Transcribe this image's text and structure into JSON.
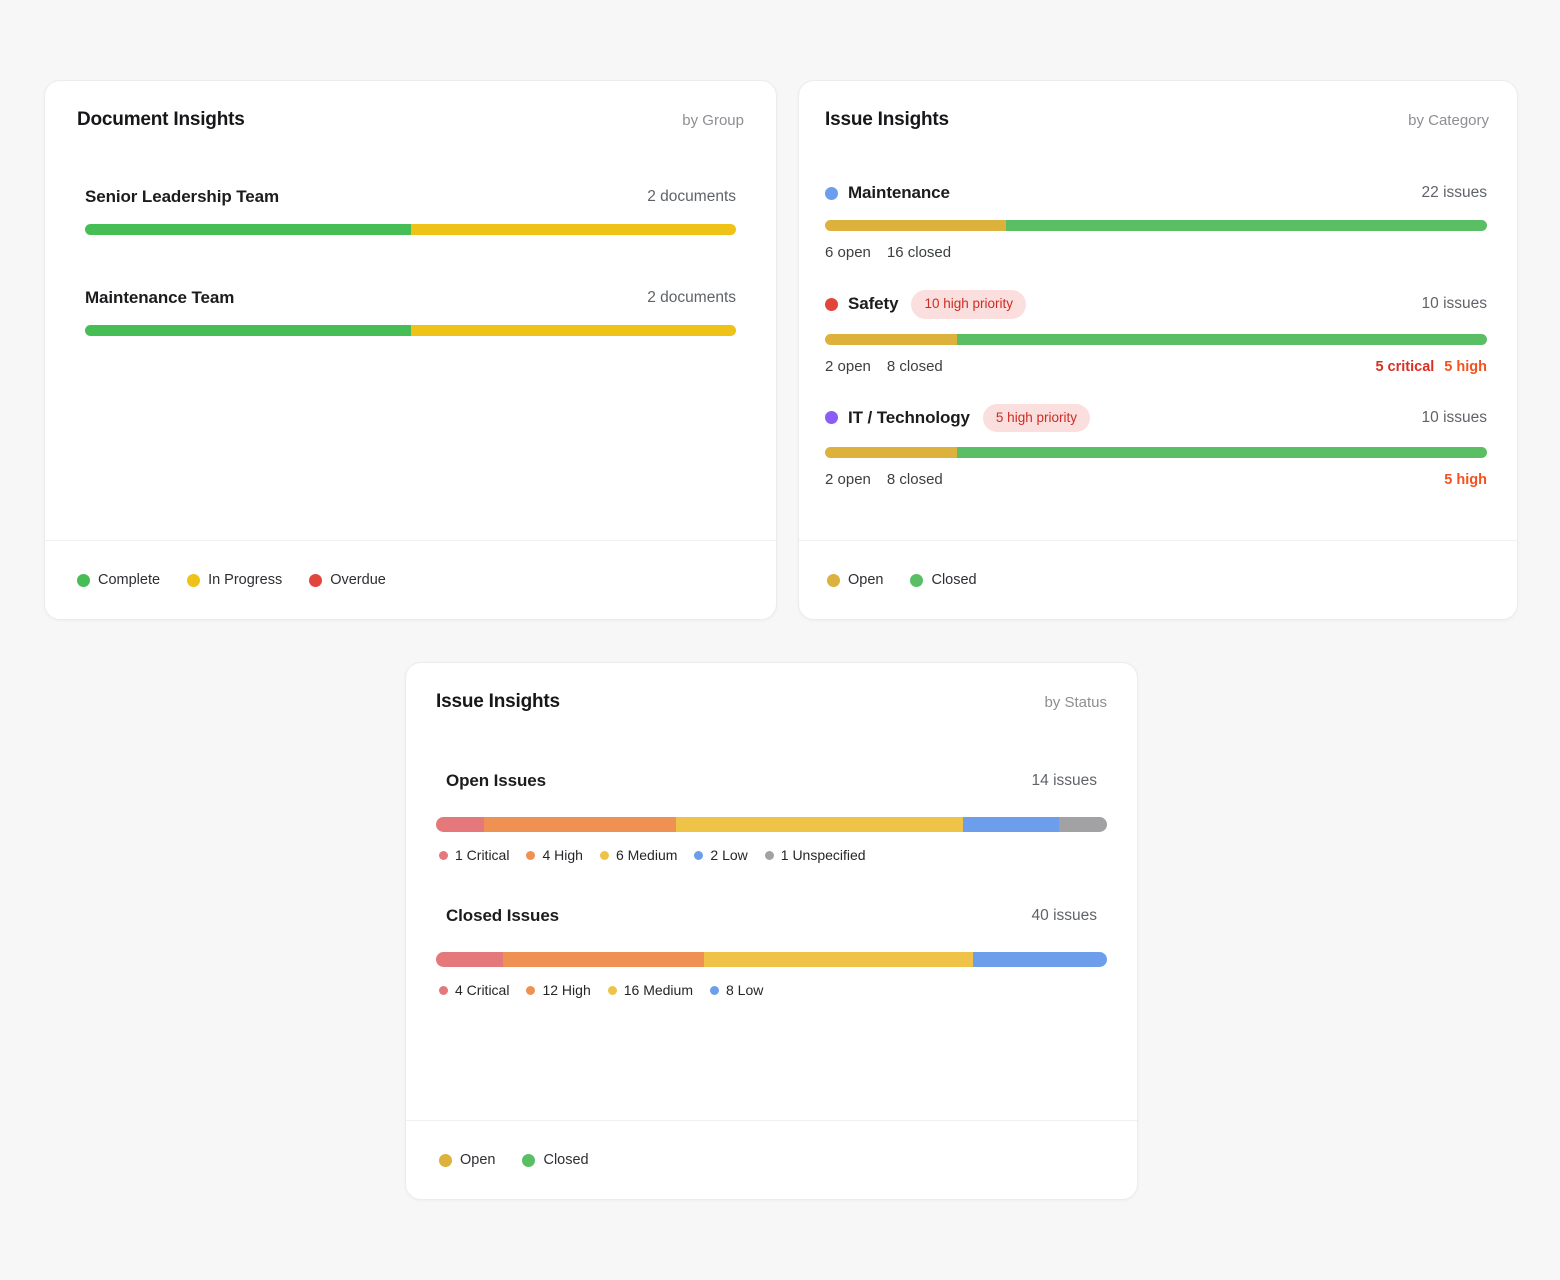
{
  "colors": {
    "page_bg": "#F7F7F8",
    "card_bg": "#FFFFFF",
    "complete_green": "#46BE55",
    "in_progress_yellow": "#EFC217",
    "overdue_red": "#E2453C",
    "open_gold": "#DCB13C",
    "closed_green": "#5ABE64",
    "critical_text_red": "#D93025",
    "high_text_orange": "#F4511E",
    "badge_bg": "#FADFDE",
    "badge_text": "#CE2C23",
    "seg_critical": "#E4787A",
    "seg_high": "#EF9152",
    "seg_medium": "#EFC348",
    "seg_low": "#6D9EEB",
    "seg_unspecified": "#A2A2A5"
  },
  "cards": {
    "documents": {
      "title": "Document Insights",
      "subtitle": "by Group",
      "rows": [
        {
          "label": "Senior Leadership Team",
          "count": "2 documents",
          "segments": [
            {
              "name": "Complete",
              "color": "#46BE55",
              "pct": 50
            },
            {
              "name": "In Progress",
              "color": "#EFC217",
              "pct": 50
            }
          ]
        },
        {
          "label": "Maintenance Team",
          "count": "2 documents",
          "segments": [
            {
              "name": "Complete",
              "color": "#46BE55",
              "pct": 50
            },
            {
              "name": "In Progress",
              "color": "#EFC217",
              "pct": 50
            }
          ]
        }
      ],
      "legend": [
        {
          "label": "Complete",
          "color": "#46BE55"
        },
        {
          "label": "In Progress",
          "color": "#EFC217"
        },
        {
          "label": "Overdue",
          "color": "#E2453C"
        }
      ]
    },
    "category": {
      "title": "Issue Insights",
      "subtitle": "by Category",
      "rows": [
        {
          "dot_color": "#6D9EEB",
          "label": "Maintenance",
          "count": "22 issues",
          "open_label": "6 open",
          "closed_label": "16 closed",
          "segments": [
            {
              "name": "Open",
              "color": "#DCB13C",
              "pct": 27.3
            },
            {
              "name": "Closed",
              "color": "#5ABE64",
              "pct": 72.7
            }
          ]
        },
        {
          "dot_color": "#E2453C",
          "label": "Safety",
          "badge": "10 high priority",
          "count": "10 issues",
          "open_label": "2 open",
          "closed_label": "8 closed",
          "critical_label": "5 critical",
          "high_label": "5 high",
          "segments": [
            {
              "name": "Open",
              "color": "#DCB13C",
              "pct": 20
            },
            {
              "name": "Closed",
              "color": "#5ABE64",
              "pct": 80
            }
          ]
        },
        {
          "dot_color": "#8B5CF6",
          "label": "IT / Technology",
          "badge": "5 high priority",
          "count": "10 issues",
          "open_label": "2 open",
          "closed_label": "8 closed",
          "high_label": "5 high",
          "segments": [
            {
              "name": "Open",
              "color": "#DCB13C",
              "pct": 20
            },
            {
              "name": "Closed",
              "color": "#5ABE64",
              "pct": 80
            }
          ]
        }
      ],
      "legend": [
        {
          "label": "Open",
          "color": "#DCB13C"
        },
        {
          "label": "Closed",
          "color": "#5ABE64"
        }
      ]
    },
    "status": {
      "title": "Issue Insights",
      "subtitle": "by Status",
      "rows": [
        {
          "label": "Open Issues",
          "count": "14 issues",
          "segments": [
            {
              "label": "1 Critical",
              "color": "#E4787A",
              "pct": 7.14
            },
            {
              "label": "4 High",
              "color": "#EF9152",
              "pct": 28.57
            },
            {
              "label": "6 Medium",
              "color": "#EFC348",
              "pct": 42.86
            },
            {
              "label": "2 Low",
              "color": "#6D9EEB",
              "pct": 14.29
            },
            {
              "label": "1 Unspecified",
              "color": "#A2A2A5",
              "pct": 7.14
            }
          ]
        },
        {
          "label": "Closed Issues",
          "count": "40 issues",
          "segments": [
            {
              "label": "4 Critical",
              "color": "#E4787A",
              "pct": 10
            },
            {
              "label": "12 High",
              "color": "#EF9152",
              "pct": 30
            },
            {
              "label": "16 Medium",
              "color": "#EFC348",
              "pct": 40
            },
            {
              "label": "8 Low",
              "color": "#6D9EEB",
              "pct": 20
            }
          ]
        }
      ],
      "legend": [
        {
          "label": "Open",
          "color": "#DCB13C"
        },
        {
          "label": "Closed",
          "color": "#5ABE64"
        }
      ]
    }
  },
  "chart_data": [
    {
      "type": "bar",
      "title": "Document Insights",
      "subtitle": "by Group",
      "layout": "horizontal stacked progress bars, legend at bottom",
      "categories": [
        "Senior Leadership Team",
        "Maintenance Team"
      ],
      "series": [
        {
          "name": "Complete",
          "values": [
            1,
            1
          ]
        },
        {
          "name": "In Progress",
          "values": [
            1,
            1
          ]
        },
        {
          "name": "Overdue",
          "values": [
            0,
            0
          ]
        }
      ],
      "totals": [
        2,
        2
      ],
      "unit": "documents"
    },
    {
      "type": "bar",
      "title": "Issue Insights",
      "subtitle": "by Category",
      "layout": "horizontal stacked progress bars, legend at bottom",
      "categories": [
        "Maintenance",
        "Safety",
        "IT / Technology"
      ],
      "series": [
        {
          "name": "Open",
          "values": [
            6,
            2,
            2
          ]
        },
        {
          "name": "Closed",
          "values": [
            16,
            8,
            8
          ]
        }
      ],
      "totals": [
        22,
        10,
        10
      ],
      "unit": "issues",
      "annotations": {
        "Safety": {
          "badge": "10 high priority",
          "critical": 5,
          "high": 5
        },
        "IT / Technology": {
          "badge": "5 high priority",
          "high": 5
        }
      }
    },
    {
      "type": "bar",
      "title": "Issue Insights",
      "subtitle": "by Status",
      "layout": "horizontal stacked severity bars with inline legends, Open/Closed legend at bottom",
      "categories": [
        "Open Issues",
        "Closed Issues"
      ],
      "series": [
        {
          "name": "Critical",
          "values": [
            1,
            4
          ]
        },
        {
          "name": "High",
          "values": [
            4,
            12
          ]
        },
        {
          "name": "Medium",
          "values": [
            6,
            16
          ]
        },
        {
          "name": "Low",
          "values": [
            2,
            8
          ]
        },
        {
          "name": "Unspecified",
          "values": [
            1,
            0
          ]
        }
      ],
      "totals": [
        14,
        40
      ],
      "unit": "issues"
    }
  ]
}
